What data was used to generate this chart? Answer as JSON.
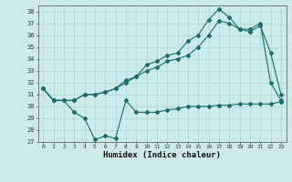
{
  "x_ticks": [
    0,
    1,
    2,
    3,
    4,
    5,
    6,
    7,
    8,
    9,
    10,
    11,
    12,
    13,
    14,
    15,
    16,
    17,
    18,
    19,
    20,
    21,
    22,
    23
  ],
  "line1_x": [
    0,
    1,
    2,
    3,
    4,
    5,
    6,
    7,
    8,
    9,
    10,
    11,
    12,
    13,
    14,
    15,
    16,
    17,
    18,
    19,
    20,
    21,
    22,
    23
  ],
  "line1_y": [
    31.5,
    30.5,
    30.5,
    29.5,
    29.0,
    27.2,
    27.5,
    27.3,
    30.5,
    29.5,
    29.5,
    29.5,
    29.7,
    29.8,
    30.0,
    30.0,
    30.0,
    30.1,
    30.1,
    30.2,
    30.2,
    30.2,
    30.2,
    30.4
  ],
  "line2_x": [
    0,
    1,
    2,
    3,
    4,
    5,
    6,
    7,
    8,
    9,
    10,
    11,
    12,
    13,
    14,
    15,
    16,
    17,
    18,
    19,
    20,
    21,
    22,
    23
  ],
  "line2_y": [
    31.5,
    30.5,
    30.5,
    30.5,
    31.0,
    31.0,
    31.2,
    31.5,
    32.0,
    32.5,
    33.0,
    33.3,
    33.8,
    34.0,
    34.3,
    35.0,
    36.0,
    37.2,
    37.0,
    36.5,
    36.3,
    36.8,
    34.5,
    31.0
  ],
  "line3_x": [
    0,
    1,
    2,
    3,
    4,
    5,
    6,
    7,
    8,
    9,
    10,
    11,
    12,
    13,
    14,
    15,
    16,
    17,
    18,
    19,
    20,
    21,
    22,
    23
  ],
  "line3_y": [
    31.5,
    30.5,
    30.5,
    30.5,
    31.0,
    31.0,
    31.2,
    31.5,
    32.2,
    32.5,
    33.5,
    33.8,
    34.3,
    34.5,
    35.5,
    36.0,
    37.3,
    38.2,
    37.5,
    36.5,
    36.5,
    37.0,
    32.0,
    30.5
  ],
  "line_color": "#1a6b6b",
  "bg_color": "#cdeaea",
  "grid_color": "#b0d8d8",
  "ylim": [
    27,
    38.5
  ],
  "yticks": [
    27,
    28,
    29,
    30,
    31,
    32,
    33,
    34,
    35,
    36,
    37,
    38
  ],
  "xlabel": "Humidex (Indice chaleur)",
  "markersize": 2.0,
  "linewidth": 0.8
}
